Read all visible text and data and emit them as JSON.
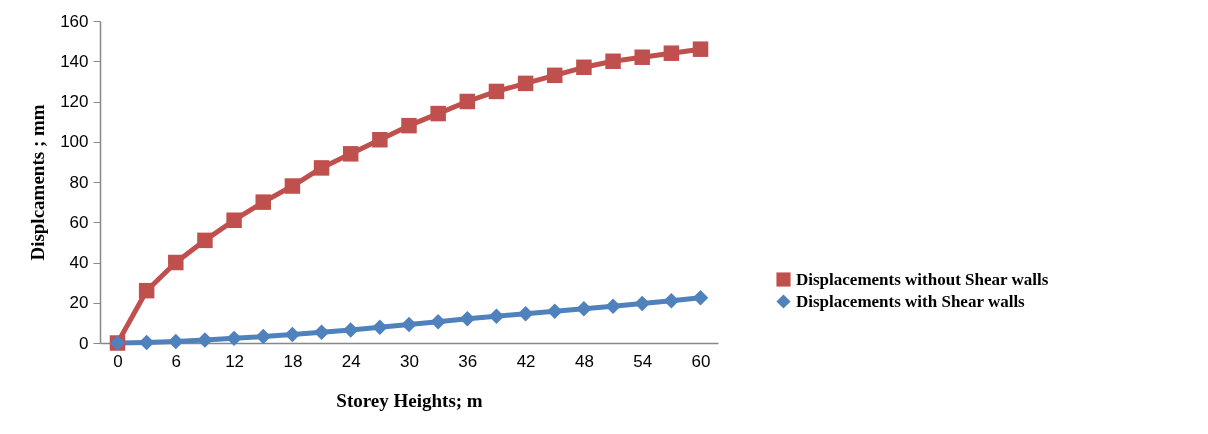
{
  "chart_data": {
    "type": "line",
    "xlabel": "Storey Heights; m",
    "ylabel": "Displcaments ; mm",
    "categories": [
      "0",
      null,
      "6",
      null,
      "12",
      null,
      "18",
      null,
      "24",
      null,
      "30",
      null,
      "36",
      null,
      "42",
      null,
      "48",
      null,
      "54",
      null,
      "60"
    ],
    "series": [
      {
        "name": "Displacements without Shear walls",
        "color": "#c0504d",
        "marker": "square",
        "values": [
          0,
          26,
          40,
          51,
          61,
          70,
          78,
          87,
          94,
          101,
          108,
          114,
          120,
          125,
          129,
          133,
          137,
          140,
          142,
          144,
          146
        ]
      },
      {
        "name": "Displacements with Shear walls",
        "color": "#4f81bd",
        "marker": "diamond",
        "values": [
          0,
          0.3,
          0.8,
          1.5,
          2.3,
          3.2,
          4.2,
          5.3,
          6.5,
          7.8,
          9.2,
          10.6,
          12,
          13.3,
          14.5,
          15.8,
          17,
          18.3,
          19.6,
          21,
          22.5
        ]
      }
    ],
    "ylim": [
      0,
      160
    ],
    "yticks": [
      0,
      20,
      40,
      60,
      80,
      100,
      120,
      140,
      160
    ],
    "legend": "right",
    "line_style": "solid"
  }
}
